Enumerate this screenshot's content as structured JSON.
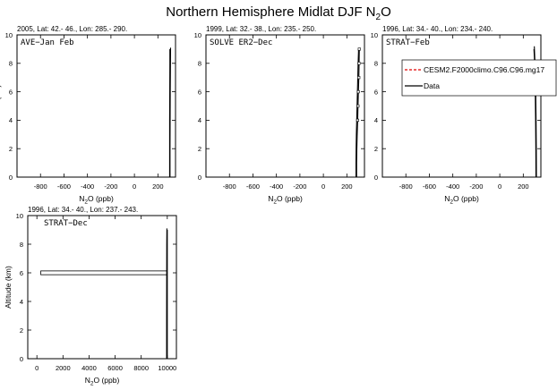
{
  "figure": {
    "title_main": "Northern Hemisphere Midlat DJF N",
    "title_sub": "2",
    "title_tail": "O"
  },
  "chart_data": [
    {
      "type": "line",
      "panel_title": "2005, Lat: 42.- 46., Lon: 285.- 290.",
      "label": "AVE−Jan Feb",
      "xlabel_pre": "N",
      "xlabel_sub": "2",
      "xlabel_post": "O (ppb)",
      "ylabel": "Altitude (km)",
      "xlim": [
        -1000,
        350
      ],
      "ylim": [
        0,
        10
      ],
      "xticks": [
        -800,
        -600,
        -400,
        -200,
        0,
        200
      ],
      "yticks": [
        0,
        2,
        4,
        6,
        8,
        10
      ],
      "series": [
        {
          "color": "#000000",
          "points": [
            [
              303,
              0
            ],
            [
              303,
              2
            ],
            [
              304,
              4
            ],
            [
              305,
              6
            ],
            [
              307,
              8
            ],
            [
              308,
              9.1
            ]
          ]
        },
        {
          "color": "#000000",
          "points": [
            [
              300,
              0
            ],
            [
              300,
              2
            ],
            [
              300,
              4
            ],
            [
              301,
              6
            ],
            [
              302,
              8
            ],
            [
              302,
              9
            ]
          ]
        }
      ]
    },
    {
      "type": "line",
      "panel_title": "1999, Lat: 32.- 38., Lon: 235.- 250.",
      "label": "SOLVE ER2−Dec",
      "xlabel_pre": "N",
      "xlabel_sub": "2",
      "xlabel_post": "O (ppb)",
      "ylabel": "",
      "xlim": [
        -1000,
        350
      ],
      "ylim": [
        0,
        10
      ],
      "xticks": [
        -800,
        -600,
        -400,
        -200,
        0,
        200
      ],
      "yticks": [
        0,
        2,
        4,
        6,
        8,
        10
      ],
      "series": [
        {
          "color": "#000000",
          "points": [
            [
              283,
              0
            ],
            [
              283,
              1
            ],
            [
              285,
              2
            ],
            [
              288,
              3
            ],
            [
              292,
              4
            ],
            [
              295,
              5
            ],
            [
              298,
              6
            ],
            [
              302,
              7
            ],
            [
              304,
              8
            ],
            [
              306,
              9
            ]
          ]
        },
        {
          "color": "#000000",
          "points": [
            [
              278,
              0
            ],
            [
              278,
              1
            ],
            [
              279,
              2
            ],
            [
              281,
              3
            ],
            [
              284,
              4
            ],
            [
              287,
              5
            ],
            [
              290,
              6
            ],
            [
              293,
              7
            ],
            [
              296,
              8
            ],
            [
              300,
              9
            ]
          ]
        }
      ],
      "markers": [
        {
          "x": 292,
          "y": 4
        },
        {
          "x": 295,
          "y": 5
        },
        {
          "x": 298,
          "y": 6
        },
        {
          "x": 302,
          "y": 7
        },
        {
          "x": 304,
          "y": 8
        },
        {
          "x": 306,
          "y": 9
        }
      ]
    },
    {
      "type": "line",
      "panel_title": "1996, Lat: 34.- 40., Lon: 234.- 240.",
      "label": "STRAT−Feb",
      "xlabel_pre": "N",
      "xlabel_sub": "2",
      "xlabel_post": "O (ppb)",
      "ylabel": "",
      "xlim": [
        -1000,
        350
      ],
      "ylim": [
        0,
        10
      ],
      "xticks": [
        -800,
        -600,
        -400,
        -200,
        0,
        200
      ],
      "yticks": [
        0,
        2,
        4,
        6,
        8,
        10
      ],
      "series": [
        {
          "color": "#000000",
          "points": [
            [
              312,
              0
            ],
            [
              311,
              2
            ],
            [
              309,
              4
            ],
            [
              306,
              6
            ],
            [
              300,
              8
            ],
            [
              294,
              9.2
            ]
          ]
        },
        {
          "color": "#000000",
          "points": [
            [
              308,
              0
            ],
            [
              307,
              2
            ],
            [
              305,
              4
            ],
            [
              302,
              6
            ],
            [
              297,
              8
            ],
            [
              291,
              9
            ]
          ]
        }
      ],
      "legend": {
        "position": "top-right",
        "entries": [
          {
            "name": "CESM2.F2000climo.C96.C96.mg17",
            "color": "#e00000",
            "dash": true
          },
          {
            "name": "Data",
            "color": "#000000",
            "dash": false
          }
        ]
      }
    },
    {
      "type": "line",
      "panel_title": "1996, Lat: 34.- 40., Lon: 237.- 243.",
      "label": "STRAT−Dec",
      "xlabel_pre": "N",
      "xlabel_sub": "2",
      "xlabel_post": "O (ppb)",
      "ylabel": "Altitude (km)",
      "xlim": [
        -700,
        10700
      ],
      "ylim": [
        0,
        10
      ],
      "xticks": [
        0,
        2000,
        4000,
        6000,
        8000,
        10000
      ],
      "yticks": [
        0,
        2,
        4,
        6,
        8,
        10
      ],
      "series": [
        {
          "color": "#000000",
          "points": [
            [
              9950,
              0
            ],
            [
              9950,
              3
            ],
            [
              9955,
              6
            ],
            [
              9960,
              8
            ],
            [
              9970,
              9.1
            ]
          ]
        },
        {
          "color": "#000000",
          "points": [
            [
              10000,
              0
            ],
            [
              10000,
              3
            ],
            [
              10000,
              6
            ],
            [
              10000,
              8
            ],
            [
              10000,
              9
            ]
          ]
        }
      ],
      "band": {
        "x0": 300,
        "x1": 9980,
        "y0": 5.93,
        "y1": 6.07
      }
    }
  ]
}
